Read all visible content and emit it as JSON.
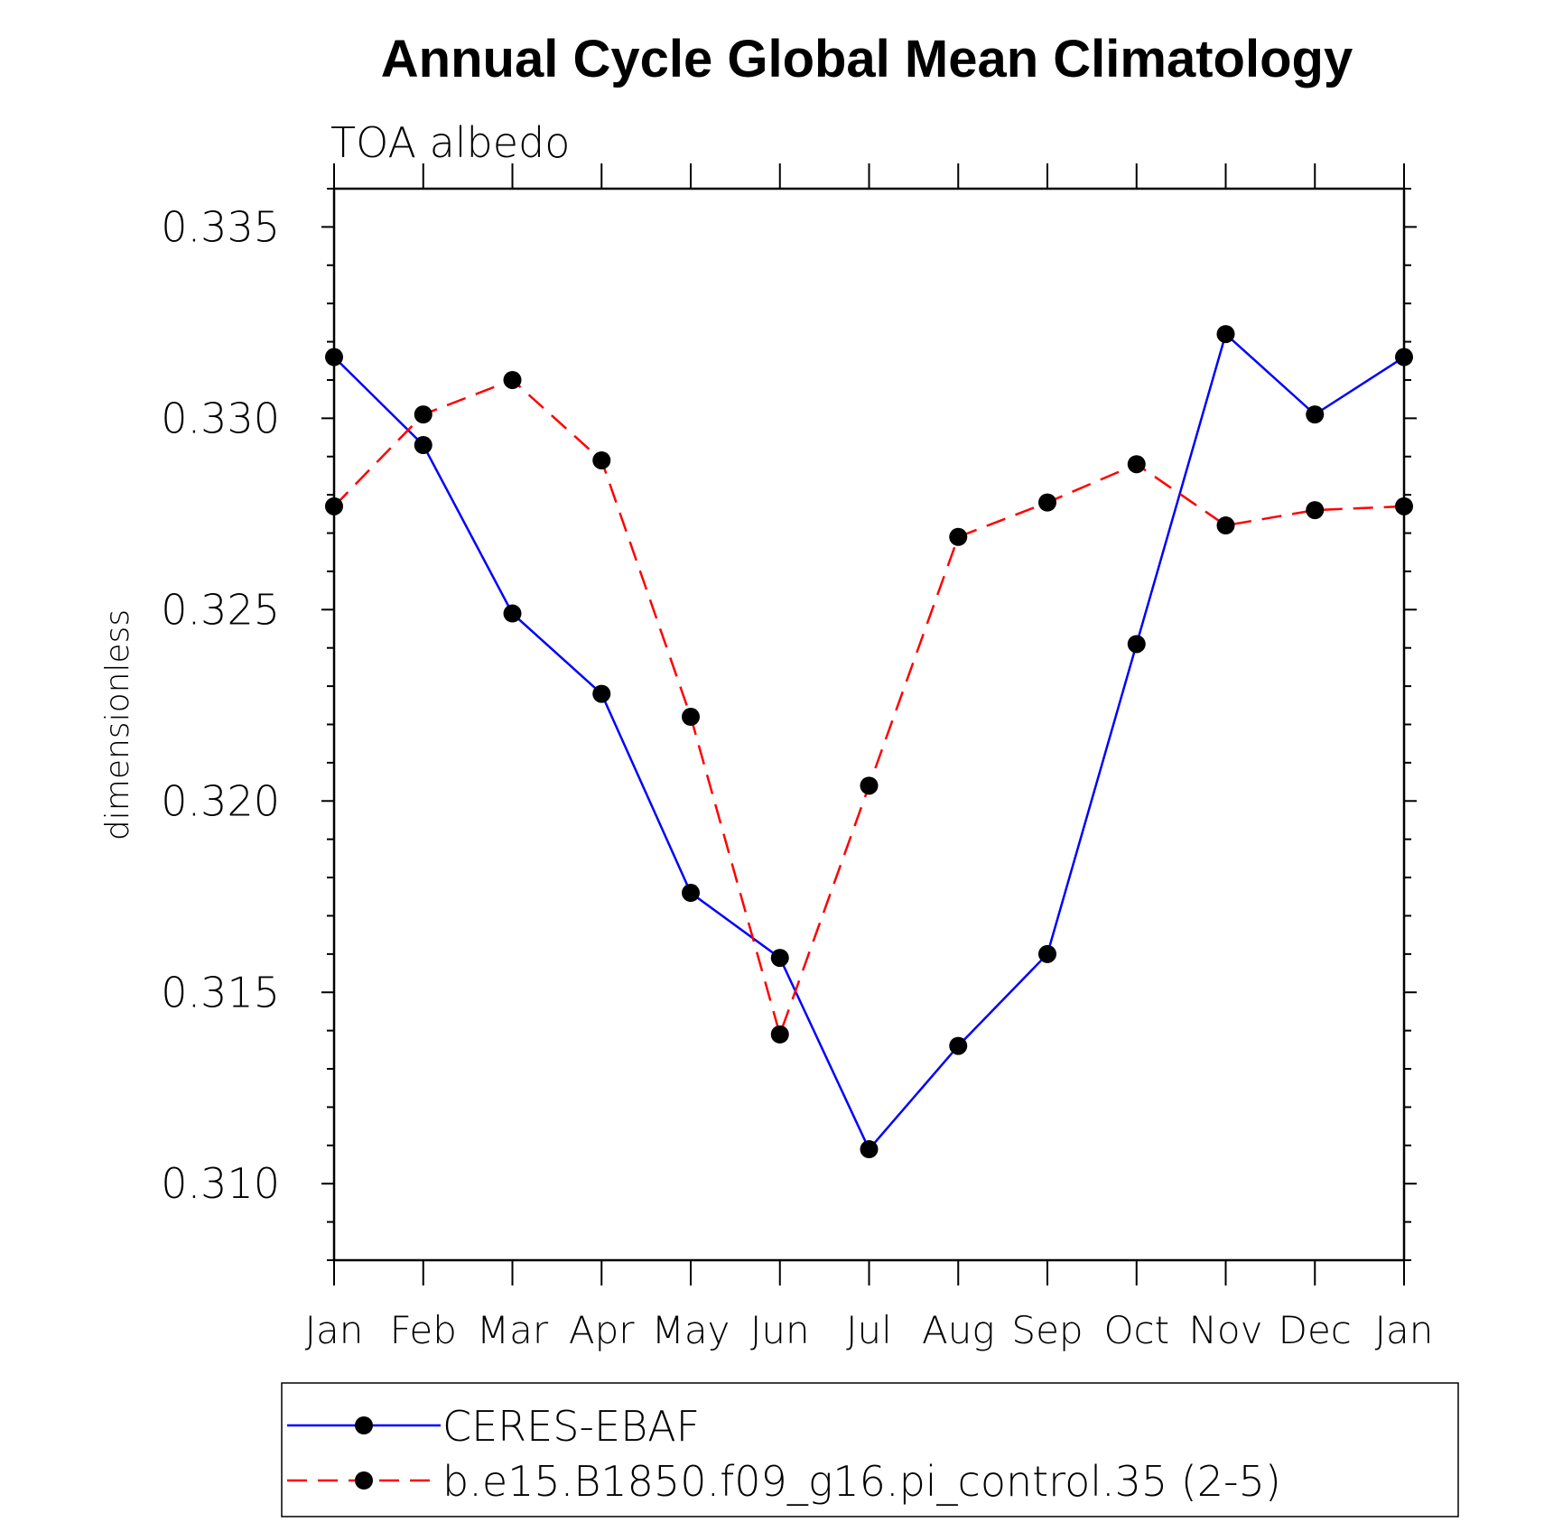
{
  "chart_data": {
    "type": "line",
    "title": "Annual Cycle Global Mean Climatology",
    "subtitle": "TOA albedo",
    "xlabel": "",
    "ylabel": "dimensionless",
    "categories": [
      "Jan",
      "Feb",
      "Mar",
      "Apr",
      "May",
      "Jun",
      "Jul",
      "Aug",
      "Sep",
      "Oct",
      "Nov",
      "Dec",
      "Jan"
    ],
    "ylim": [
      0.308,
      0.336
    ],
    "yticks": [
      "0.310",
      "0.315",
      "0.320",
      "0.325",
      "0.330",
      "0.335"
    ],
    "legend_position": "bottom",
    "series": [
      {
        "name": "CERES-EBAF",
        "color": "#0000ff",
        "dash": "solid",
        "marker": "filled-circle",
        "values": [
          0.3316,
          0.3293,
          0.3249,
          0.3228,
          0.3176,
          0.3159,
          0.3109,
          0.3136,
          0.316,
          0.3241,
          0.3322,
          0.3301,
          0.3316
        ]
      },
      {
        "name": "b.e15.B1850.f09_g16.pi_control.35 (2-5)",
        "color": "#ff0000",
        "dash": "dashed",
        "marker": "filled-circle",
        "values": [
          0.3277,
          0.3301,
          0.331,
          0.3289,
          0.3222,
          0.3139,
          0.3204,
          0.3269,
          0.3278,
          0.3288,
          0.3272,
          0.3276,
          0.3277
        ]
      }
    ]
  }
}
